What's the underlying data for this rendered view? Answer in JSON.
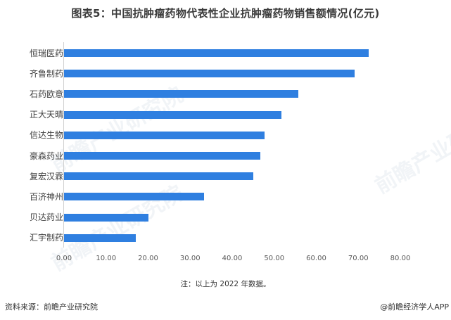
{
  "header": {
    "title": "图表5：中国抗肿瘤药物代表性企业抗肿瘤药物销售额情况(亿元)"
  },
  "colors": {
    "bar": "#2f7fe0",
    "axis": "#d0d0d0"
  },
  "chart_data": {
    "type": "bar",
    "orientation": "horizontal",
    "title": "图表5：中国抗肿瘤药物代表性企业抗肿瘤药物销售额情况(亿元)",
    "xlabel": "",
    "ylabel": "",
    "xlim": [
      0,
      80
    ],
    "grid": false,
    "legend": "none",
    "categories": [
      "恒瑞医药",
      "齐鲁制药",
      "石药欧意",
      "正大天晴",
      "信达生物",
      "豪森药业",
      "复宏汉霖",
      "百济神州",
      "贝达药业",
      "汇宇制药"
    ],
    "values": [
      72.5,
      69.1,
      55.7,
      51.7,
      47.7,
      46.7,
      45.0,
      33.3,
      20.1,
      17.1
    ],
    "x_ticks": [
      "0.00",
      "10.00",
      "20.00",
      "30.00",
      "40.00",
      "50.00",
      "60.00",
      "70.00",
      "80.00"
    ],
    "x_tick_values": [
      0,
      10,
      20,
      30,
      40,
      50,
      60,
      70,
      80
    ]
  },
  "footer": {
    "note": "注：以上为 2022 年数据。",
    "source": "资料来源：前瞻产业研究院",
    "credit": "@前瞻经济学人APP"
  },
  "watermark": {
    "text": "前瞻产业研究院"
  }
}
